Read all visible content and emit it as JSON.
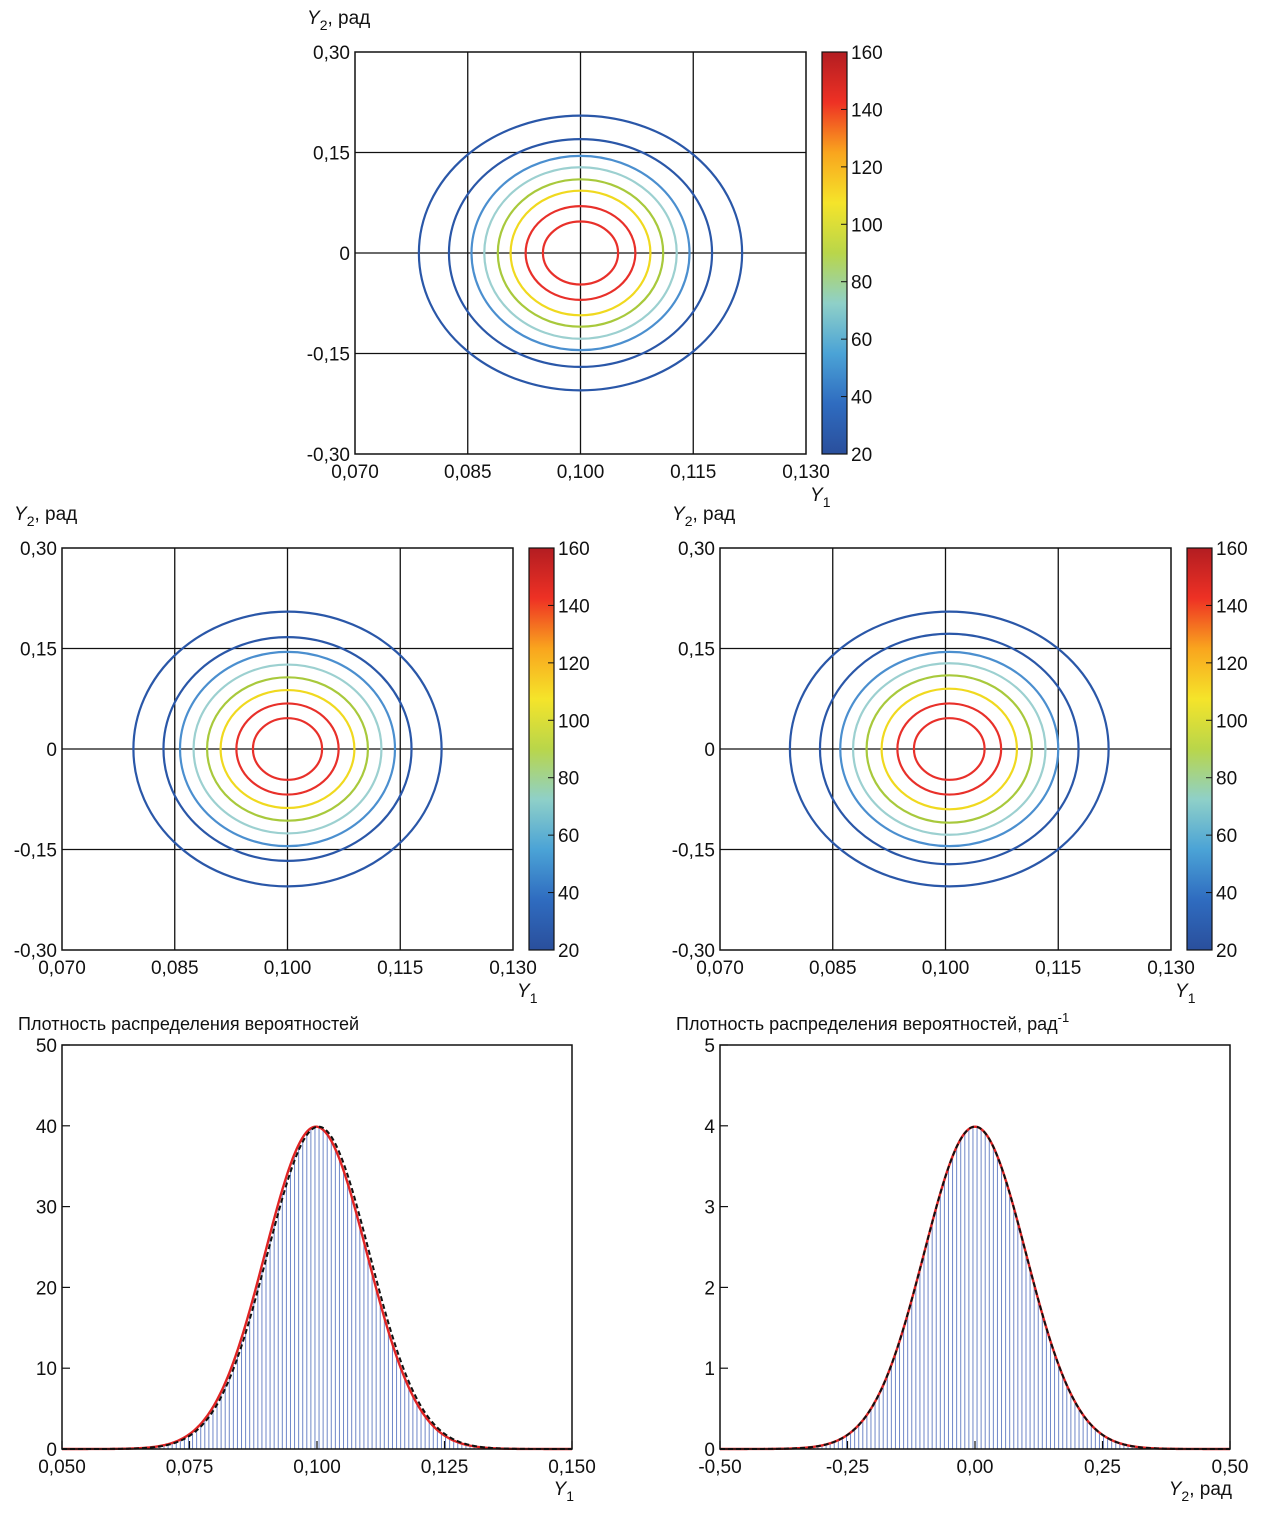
{
  "chart_data": [
    {
      "id": "contour_top",
      "type": "contour",
      "xlabel": {
        "sym": "Y",
        "sub": "1",
        "rest": ""
      },
      "ylabel": {
        "sym": "Y",
        "sub": "2",
        "rest": ", рад"
      },
      "xlim": [
        0.07,
        0.13
      ],
      "ylim": [
        -0.3,
        0.3
      ],
      "xticks": [
        0.07,
        0.085,
        0.1,
        0.115,
        0.13
      ],
      "xtick_labels": [
        "0,070",
        "0,085",
        "0,100",
        "0,115",
        "0,130"
      ],
      "yticks": [
        -0.3,
        -0.15,
        0,
        0.15,
        0.3
      ],
      "ytick_labels": [
        "-0,30",
        "-0,15",
        "0",
        "0,15",
        "0,30"
      ],
      "grid": true,
      "colorbar": {
        "min": 20,
        "max": 160,
        "ticks": [
          20,
          40,
          60,
          80,
          100,
          120,
          140,
          160
        ],
        "tick_labels": [
          "20",
          "40",
          "60",
          "80",
          "100",
          "120",
          "140",
          "160"
        ],
        "colors": [
          "#2a4f9c",
          "#2f6cc0",
          "#4ba3d6",
          "#8fd0c8",
          "#b9d64a",
          "#f5e42a",
          "#f9a51e",
          "#ee3124",
          "#b31d22"
        ]
      },
      "center": [
        0.1,
        0.0
      ],
      "levels": [
        {
          "value": 20,
          "a": 0.0215,
          "b": 0.205,
          "color": "#2a57a8"
        },
        {
          "value": 40,
          "a": 0.0175,
          "b": 0.17,
          "color": "#2a57a8"
        },
        {
          "value": 60,
          "a": 0.0145,
          "b": 0.145,
          "color": "#4b8fcf"
        },
        {
          "value": 70,
          "a": 0.0128,
          "b": 0.128,
          "color": "#9cd0d0"
        },
        {
          "value": 90,
          "a": 0.011,
          "b": 0.11,
          "color": "#a8c93c"
        },
        {
          "value": 100,
          "a": 0.0093,
          "b": 0.093,
          "color": "#f0d91f"
        },
        {
          "value": 120,
          "a": 0.0073,
          "b": 0.07,
          "color": "#e8302a"
        },
        {
          "value": 140,
          "a": 0.005,
          "b": 0.047,
          "color": "#e8302a"
        }
      ]
    },
    {
      "id": "contour_left",
      "type": "contour",
      "xlabel": {
        "sym": "Y",
        "sub": "1",
        "rest": ""
      },
      "ylabel": {
        "sym": "Y",
        "sub": "2",
        "rest": ", рад"
      },
      "xlim": [
        0.07,
        0.13
      ],
      "ylim": [
        -0.3,
        0.3
      ],
      "xticks": [
        0.07,
        0.085,
        0.1,
        0.115,
        0.13
      ],
      "xtick_labels": [
        "0,070",
        "0,085",
        "0,100",
        "0,115",
        "0,130"
      ],
      "yticks": [
        -0.3,
        -0.15,
        0,
        0.15,
        0.3
      ],
      "ytick_labels": [
        "-0,30",
        "-0,15",
        "0",
        "0,15",
        "0,30"
      ],
      "grid": true,
      "colorbar": {
        "min": 20,
        "max": 160,
        "ticks": [
          20,
          40,
          60,
          80,
          100,
          120,
          140,
          160
        ],
        "tick_labels": [
          "20",
          "40",
          "60",
          "80",
          "100",
          "120",
          "140",
          "160"
        ],
        "colors": [
          "#2a4f9c",
          "#2f6cc0",
          "#4ba3d6",
          "#8fd0c8",
          "#b9d64a",
          "#f5e42a",
          "#f9a51e",
          "#ee3124",
          "#b31d22"
        ]
      },
      "center": [
        0.1,
        0.0
      ],
      "levels": [
        {
          "value": 20,
          "a": 0.0205,
          "b": 0.205,
          "color": "#2a57a8"
        },
        {
          "value": 40,
          "a": 0.0165,
          "b": 0.167,
          "color": "#2a57a8"
        },
        {
          "value": 60,
          "a": 0.0143,
          "b": 0.145,
          "color": "#4b8fcf"
        },
        {
          "value": 70,
          "a": 0.0125,
          "b": 0.126,
          "color": "#9cd0d0"
        },
        {
          "value": 90,
          "a": 0.0107,
          "b": 0.107,
          "color": "#a8c93c"
        },
        {
          "value": 100,
          "a": 0.0089,
          "b": 0.088,
          "color": "#f0d91f"
        },
        {
          "value": 120,
          "a": 0.0068,
          "b": 0.068,
          "color": "#e8302a"
        },
        {
          "value": 140,
          "a": 0.0046,
          "b": 0.046,
          "color": "#e8302a"
        }
      ]
    },
    {
      "id": "contour_right",
      "type": "contour",
      "xlabel": {
        "sym": "Y",
        "sub": "1",
        "rest": ""
      },
      "ylabel": {
        "sym": "Y",
        "sub": "2",
        "rest": ", рад"
      },
      "xlim": [
        0.07,
        0.13
      ],
      "ylim": [
        -0.3,
        0.3
      ],
      "xticks": [
        0.07,
        0.085,
        0.1,
        0.115,
        0.13
      ],
      "xtick_labels": [
        "0,070",
        "0,085",
        "0,100",
        "0,115",
        "0,130"
      ],
      "yticks": [
        -0.3,
        -0.15,
        0,
        0.15,
        0.3
      ],
      "ytick_labels": [
        "-0,30",
        "-0,15",
        "0",
        "0,15",
        "0,30"
      ],
      "grid": true,
      "colorbar": {
        "min": 20,
        "max": 160,
        "ticks": [
          20,
          40,
          60,
          80,
          100,
          120,
          140,
          160
        ],
        "tick_labels": [
          "20",
          "40",
          "60",
          "80",
          "100",
          "120",
          "140",
          "160"
        ],
        "colors": [
          "#2a4f9c",
          "#2f6cc0",
          "#4ba3d6",
          "#8fd0c8",
          "#b9d64a",
          "#f5e42a",
          "#f9a51e",
          "#ee3124",
          "#b31d22"
        ]
      },
      "center": [
        0.1005,
        0.0
      ],
      "levels": [
        {
          "value": 20,
          "a": 0.0212,
          "b": 0.205,
          "color": "#2a57a8"
        },
        {
          "value": 40,
          "a": 0.0172,
          "b": 0.172,
          "color": "#2a57a8"
        },
        {
          "value": 60,
          "a": 0.0145,
          "b": 0.145,
          "color": "#4b8fcf"
        },
        {
          "value": 70,
          "a": 0.0128,
          "b": 0.128,
          "color": "#9cd0d0"
        },
        {
          "value": 90,
          "a": 0.011,
          "b": 0.11,
          "color": "#a8c93c"
        },
        {
          "value": 100,
          "a": 0.009,
          "b": 0.09,
          "color": "#f0d91f"
        },
        {
          "value": 120,
          "a": 0.0069,
          "b": 0.068,
          "color": "#e8302a"
        },
        {
          "value": 140,
          "a": 0.0047,
          "b": 0.046,
          "color": "#e8302a"
        }
      ]
    },
    {
      "id": "hist_y1",
      "type": "histogram",
      "title": "Плотность распределения вероятностей",
      "title_sup": "",
      "xlabel": {
        "sym": "Y",
        "sub": "1",
        "rest": ""
      },
      "xlim": [
        0.05,
        0.15
      ],
      "ylim": [
        0,
        50
      ],
      "xticks": [
        0.05,
        0.075,
        0.1,
        0.125,
        0.15
      ],
      "xtick_labels": [
        "0,050",
        "0,075",
        "0,100",
        "0,125",
        "0,150"
      ],
      "yticks": [
        0,
        10,
        20,
        30,
        40,
        50
      ],
      "ytick_labels": [
        "0",
        "10",
        "20",
        "30",
        "40",
        "50"
      ],
      "distribution": {
        "mean": 0.1,
        "sd": 0.01
      },
      "bar_range": [
        0.06,
        0.14
      ],
      "bins": 100,
      "bar_color": "#3f5fb5",
      "curves": [
        {
          "style": "solid",
          "color": "#e02424",
          "mean": 0.0998,
          "sd": 0.01
        },
        {
          "style": "dashed",
          "color": "#111111",
          "mean": 0.1003,
          "sd": 0.01
        }
      ]
    },
    {
      "id": "hist_y2",
      "type": "histogram",
      "title": "Плотность распределения вероятностей, рад",
      "title_sup": "-1",
      "xlabel": {
        "sym": "Y",
        "sub": "2",
        "rest": ", рад"
      },
      "xlim": [
        -0.5,
        0.5
      ],
      "ylim": [
        0,
        5
      ],
      "xticks": [
        -0.5,
        -0.25,
        0.0,
        0.25,
        0.5
      ],
      "xtick_labels": [
        "-0,50",
        "-0,25",
        "0,00",
        "0,25",
        "0,50"
      ],
      "yticks": [
        0,
        1,
        2,
        3,
        4,
        5
      ],
      "ytick_labels": [
        "0",
        "1",
        "2",
        "3",
        "4",
        "5"
      ],
      "distribution": {
        "mean": 0.0,
        "sd": 0.1
      },
      "bar_range": [
        -0.4,
        0.4
      ],
      "bins": 100,
      "bar_color": "#3f5fb5",
      "curves": [
        {
          "style": "solid",
          "color": "#e02424",
          "mean": 0.0,
          "sd": 0.1
        },
        {
          "style": "dashed",
          "color": "#111111",
          "mean": 0.0,
          "sd": 0.1
        }
      ]
    }
  ]
}
